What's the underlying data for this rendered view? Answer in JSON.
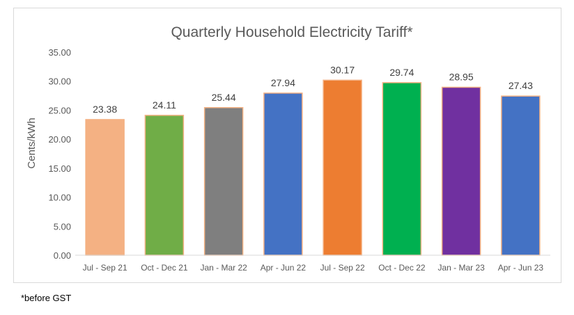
{
  "chart_data": {
    "type": "bar",
    "title": "Quarterly Household Electricity Tariff*",
    "ylabel": "Cents/kWh",
    "xlabel": "",
    "ylim": [
      0,
      35
    ],
    "yticks": [
      "0.00",
      "5.00",
      "10.00",
      "15.00",
      "20.00",
      "25.00",
      "30.00",
      "35.00"
    ],
    "grid": false,
    "legend": "none",
    "categories": [
      "Jul - Sep 21",
      "Oct - Dec 21",
      "Jan - Mar 22",
      "Apr - Jun 22",
      "Jul - Sep 22",
      "Oct - Dec 22",
      "Jan - Mar 23",
      "Apr - Jun 23"
    ],
    "values": [
      23.38,
      24.11,
      25.44,
      27.94,
      30.17,
      29.74,
      28.95,
      27.43
    ],
    "value_labels": [
      "23.38",
      "24.11",
      "25.44",
      "27.94",
      "30.17",
      "29.74",
      "28.95",
      "27.43"
    ],
    "bar_colors": [
      "#F4B183",
      "#70AD47",
      "#7F7F7F",
      "#4472C4",
      "#ED7D31",
      "#00B050",
      "#7030A0",
      "#4472C4"
    ],
    "bar_outline_color": "#F4B183"
  },
  "footnote": "*before GST"
}
